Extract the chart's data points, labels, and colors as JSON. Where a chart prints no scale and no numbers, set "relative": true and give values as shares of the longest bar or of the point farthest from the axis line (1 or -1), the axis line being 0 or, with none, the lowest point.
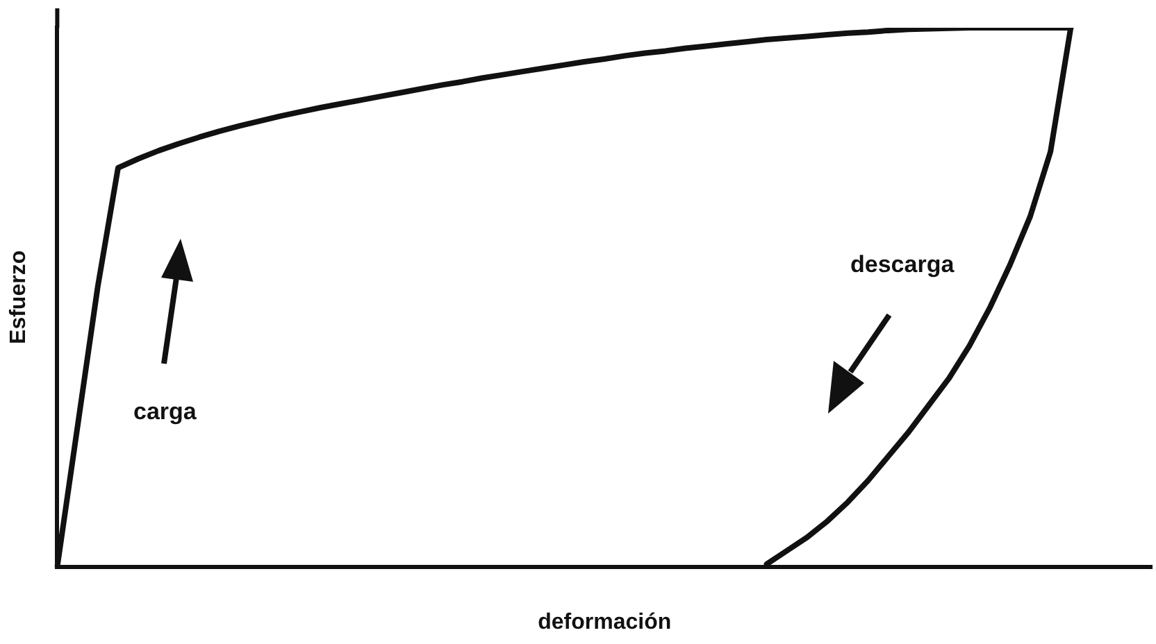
{
  "chart_data": {
    "type": "line",
    "relative": true,
    "xlabel": "deformación",
    "ylabel": "Esfuerzo",
    "marker": "none",
    "legend": false,
    "grid": false,
    "annotations": [
      "carga",
      "descarga"
    ],
    "categories": [
      null,
      null,
      null,
      null,
      null,
      null,
      null,
      null,
      null,
      null,
      null,
      null,
      null,
      null,
      null,
      null,
      null,
      null,
      null,
      null,
      null,
      null,
      null,
      null,
      null,
      null,
      null,
      null,
      null,
      null,
      null,
      null,
      null,
      null,
      null,
      null,
      null,
      null,
      null,
      null,
      null,
      null,
      null,
      null,
      null,
      null,
      null,
      null,
      null,
      null,
      null,
      null,
      null,
      null,
      null
    ],
    "series": [
      {
        "color": "#111111",
        "values": [
          0,
          0.26,
          0.52,
          0.74,
          0.757,
          0.772,
          0.785,
          0.797,
          0.808,
          0.818,
          0.827,
          0.836,
          0.844,
          0.852,
          0.859,
          0.866,
          0.873,
          0.88,
          0.887,
          0.894,
          0.9,
          0.907,
          0.913,
          0.919,
          0.925,
          0.931,
          0.937,
          0.942,
          0.948,
          0.953,
          0.957,
          0.962,
          0.966,
          0.97,
          0.974,
          0.978,
          0.981,
          0.984,
          0.987,
          0.99,
          0.992,
          0.995,
          0.997,
          0.998,
          0.999,
          1,
          1,
          1,
          1,
          1,
          1,
          null,
          null,
          null,
          null
        ]
      },
      {
        "color": "#111111",
        "values": [
          null,
          null,
          null,
          null,
          null,
          null,
          null,
          null,
          null,
          null,
          null,
          null,
          null,
          null,
          null,
          null,
          null,
          null,
          null,
          null,
          null,
          null,
          null,
          null,
          null,
          null,
          null,
          null,
          null,
          null,
          null,
          null,
          null,
          null,
          null,
          0.005,
          0.03,
          0.055,
          0.085,
          0.12,
          0.16,
          0.205,
          0.25,
          0.3,
          0.35,
          0.41,
          0.48,
          0.56,
          0.65,
          0.77,
          1,
          null,
          null,
          null,
          null
        ]
      }
    ]
  }
}
